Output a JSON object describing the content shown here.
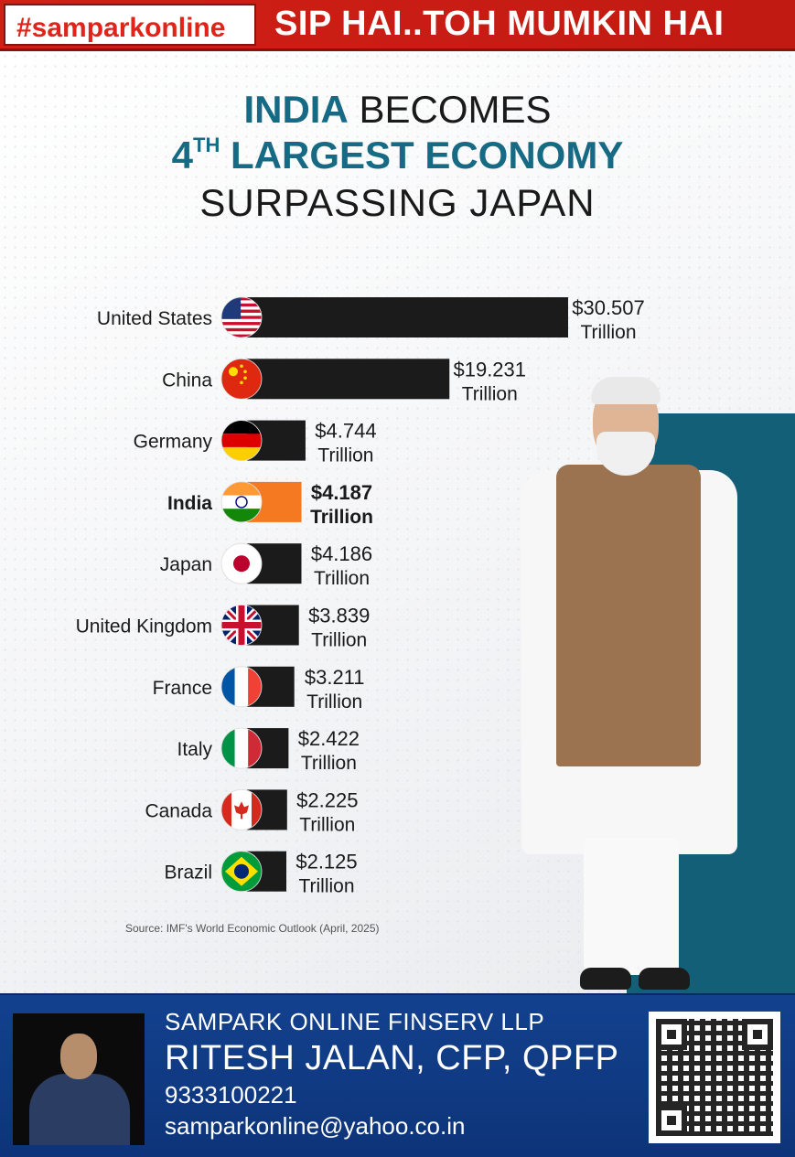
{
  "banner": {
    "hashtag": "#samparkonline",
    "slogan": "SIP HAI..TOH MUMKIN HAI"
  },
  "headline": {
    "line1_highlight": "INDIA",
    "line1_rest": " BECOMES",
    "line2_prefix": "4",
    "line2_sup": "TH",
    "line2_rest": " LARGEST ECONOMY",
    "line3": "SURPASSING JAPAN"
  },
  "chart_data": {
    "type": "bar",
    "orientation": "horizontal",
    "categories": [
      "United States",
      "China",
      "Germany",
      "India",
      "Japan",
      "United Kingdom",
      "France",
      "Italy",
      "Canada",
      "Brazil"
    ],
    "values": [
      30.507,
      19.231,
      4.744,
      4.187,
      4.186,
      3.839,
      3.211,
      2.422,
      2.225,
      2.125
    ],
    "value_labels": [
      "$30.507",
      "$19.231",
      "$4.744",
      "$4.187",
      "$4.186",
      "$3.839",
      "$3.211",
      "$2.422",
      "$2.225",
      "$2.125"
    ],
    "unit_label": "Trillion",
    "highlight": "India",
    "colors": {
      "bar": "#1b1b1b",
      "highlight_bar": "#f47920"
    },
    "flag_icons": [
      "flag-usa-icon",
      "flag-china-icon",
      "flag-germany-icon",
      "flag-india-icon",
      "flag-japan-icon",
      "flag-uk-icon",
      "flag-france-icon",
      "flag-italy-icon",
      "flag-canada-icon",
      "flag-brazil-icon"
    ],
    "source": "Source: IMF's World Economic Outlook (April, 2025)"
  },
  "footer": {
    "company": "SAMPARK ONLINE FINSERV LLP",
    "name": "RITESH JALAN,  CFP, QPFP",
    "phone": "9333100221",
    "email": "samparkonline@yahoo.co.in"
  },
  "colors": {
    "banner_red": "#d21f16",
    "headline_teal": "#166a84",
    "panel_teal": "#135f78",
    "footer_blue": "#13418e"
  }
}
